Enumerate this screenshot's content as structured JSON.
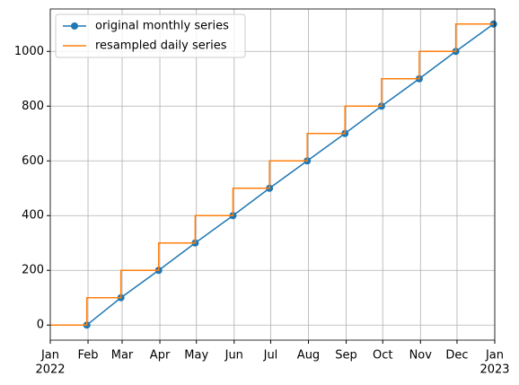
{
  "chart_data": {
    "type": "line",
    "series": [
      {
        "name": "original monthly series",
        "color": "#1f77b4",
        "marker": "circle",
        "x": [
          30,
          58,
          89,
          119,
          150,
          180,
          211,
          242,
          272,
          303,
          333,
          364
        ],
        "values": [
          0,
          100,
          200,
          300,
          400,
          500,
          600,
          700,
          800,
          900,
          1000,
          1100
        ]
      },
      {
        "name": "resampled daily series",
        "color": "#ff7f0e",
        "marker": "none",
        "x": [
          0,
          30,
          30,
          58,
          58,
          89,
          89,
          119,
          119,
          150,
          150,
          180,
          180,
          211,
          211,
          242,
          242,
          272,
          272,
          303,
          303,
          333,
          333,
          364
        ],
        "values": [
          0,
          0,
          100,
          100,
          200,
          200,
          300,
          300,
          400,
          400,
          500,
          500,
          600,
          600,
          700,
          700,
          800,
          800,
          900,
          900,
          1000,
          1000,
          1100,
          1100
        ]
      }
    ],
    "xlim": [
      0,
      365
    ],
    "xticks": [
      {
        "value": 0,
        "label": "Jan"
      },
      {
        "value": 31,
        "label": "Feb"
      },
      {
        "value": 59,
        "label": "Mar"
      },
      {
        "value": 90,
        "label": "Apr"
      },
      {
        "value": 120,
        "label": "May"
      },
      {
        "value": 151,
        "label": "Jun"
      },
      {
        "value": 181,
        "label": "Jul"
      },
      {
        "value": 212,
        "label": "Aug"
      },
      {
        "value": 243,
        "label": "Sep"
      },
      {
        "value": 273,
        "label": "Oct"
      },
      {
        "value": 304,
        "label": "Nov"
      },
      {
        "value": 334,
        "label": "Dec"
      },
      {
        "value": 365,
        "label": "Jan"
      }
    ],
    "xtick_years": [
      {
        "value": 0,
        "label": "2022"
      },
      {
        "value": 365,
        "label": "2023"
      }
    ],
    "ylim": [
      -55,
      1155
    ],
    "yticks": [
      0,
      200,
      400,
      600,
      800,
      1000
    ],
    "grid": true,
    "legend": "upper left"
  }
}
